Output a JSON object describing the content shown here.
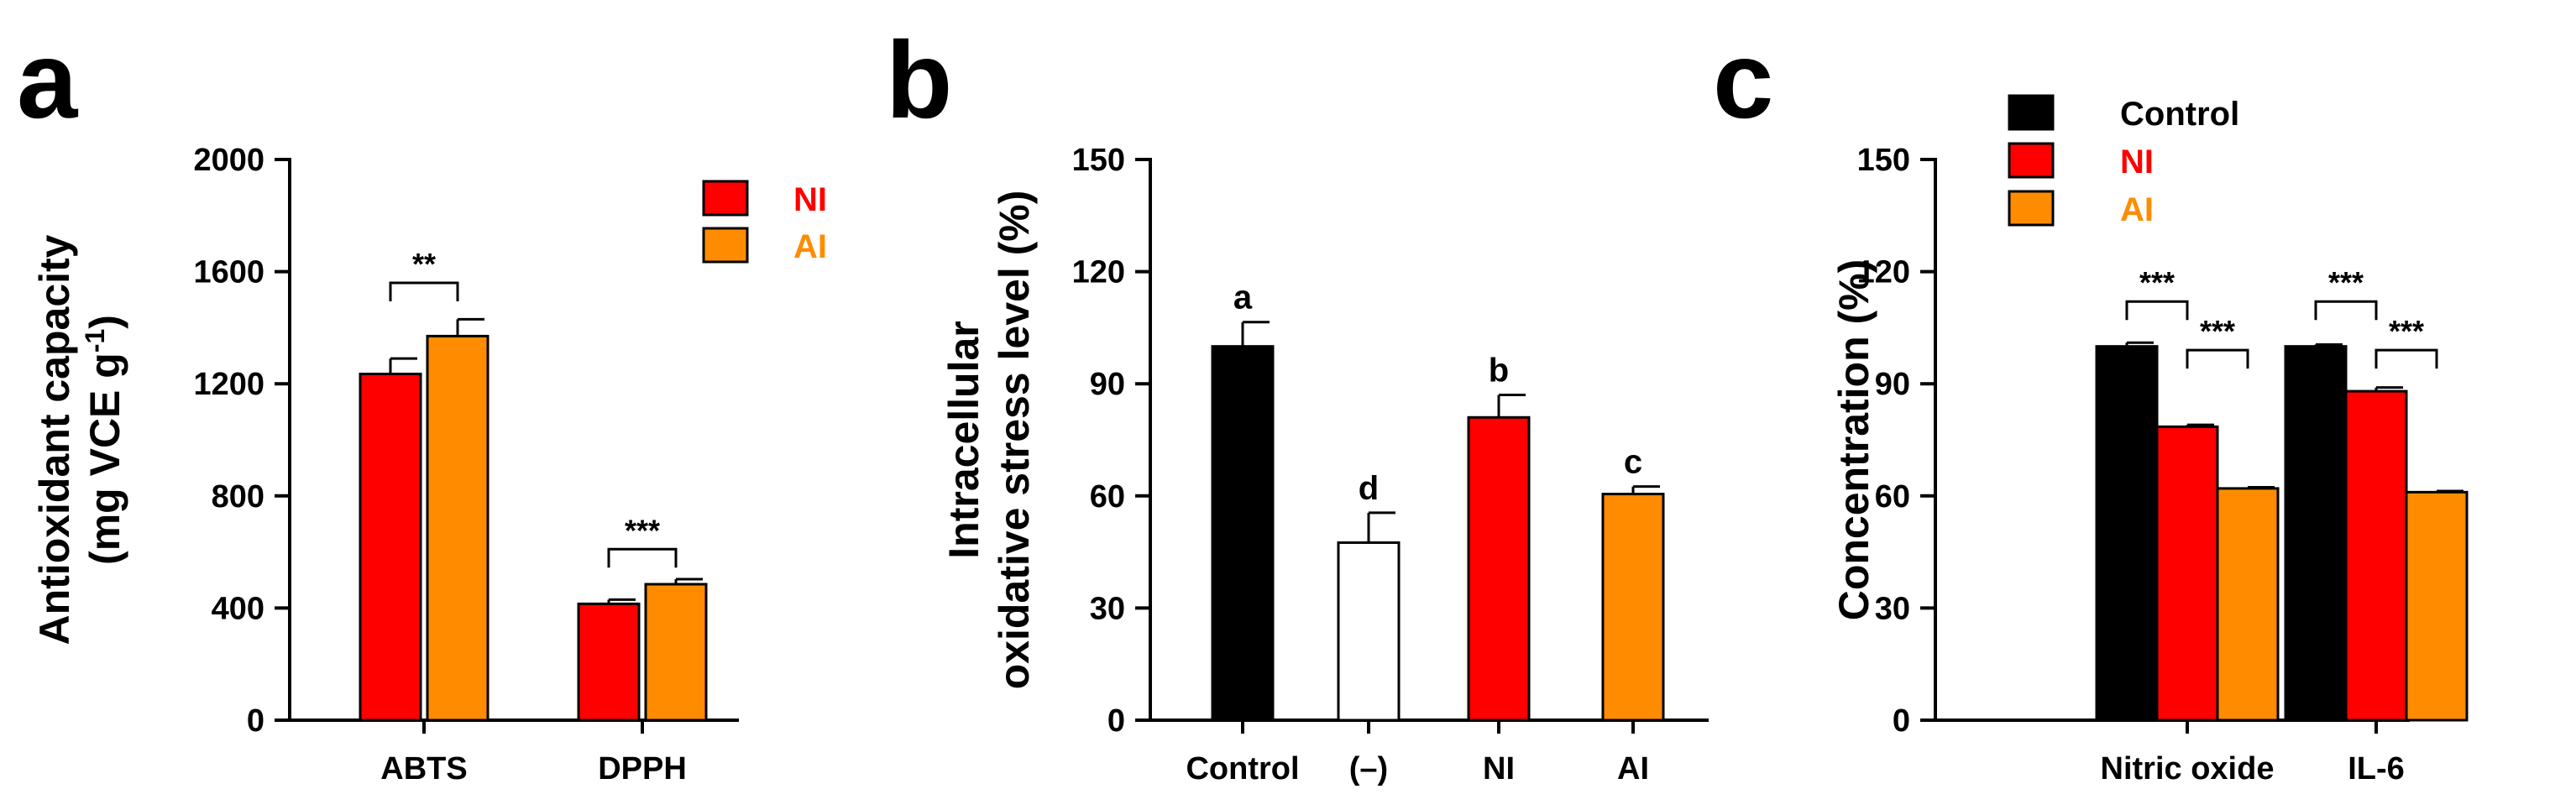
{
  "chart_data": [
    {
      "panel": "a",
      "type": "bar",
      "ylabel_lines": [
        "Antioxidant capacity",
        "(mg VCE g",
        "-1",
        ")"
      ],
      "ylim": [
        0,
        2000
      ],
      "yticks": [
        0,
        400,
        800,
        1200,
        1600,
        2000
      ],
      "categories": [
        "ABTS",
        "DPPH"
      ],
      "legend_position": "top-right",
      "series": [
        {
          "name": "NI",
          "color": "#ff0000",
          "values": [
            1235,
            415
          ],
          "errors": [
            55,
            15
          ]
        },
        {
          "name": "AI",
          "color": "#ff8c00",
          "values": [
            1370,
            485
          ],
          "errors": [
            60,
            18
          ]
        }
      ],
      "significance": [
        {
          "category": 0,
          "between": [
            0,
            1
          ],
          "label": "**",
          "y": 1560
        },
        {
          "category": 1,
          "between": [
            0,
            1
          ],
          "label": "***",
          "y": 610
        }
      ]
    },
    {
      "panel": "b",
      "type": "bar",
      "ylabel_lines": [
        "Intracellular",
        "oxidative stress level (%)"
      ],
      "ylim": [
        0,
        150
      ],
      "yticks": [
        0,
        30,
        60,
        90,
        120,
        150
      ],
      "categories": [
        "Control",
        "(–)",
        "NI",
        "AI"
      ],
      "colors": [
        "#000000",
        "#ffffff",
        "#ff0000",
        "#ff8c00"
      ],
      "values": [
        100,
        47.5,
        81,
        60.5
      ],
      "errors": [
        6.5,
        8,
        6,
        2
      ],
      "letters": [
        "a",
        "d",
        "b",
        "c"
      ]
    },
    {
      "panel": "c",
      "type": "bar",
      "ylabel": "Concentration (%)",
      "ylim": [
        0,
        150
      ],
      "yticks": [
        0,
        30,
        60,
        90,
        120,
        150
      ],
      "categories": [
        "Nitric oxide",
        "IL-6"
      ],
      "legend_position": "top-left",
      "series": [
        {
          "name": "Control",
          "color": "#000000",
          "values": [
            100,
            100
          ],
          "errors": [
            1,
            0.5
          ]
        },
        {
          "name": "NI",
          "color": "#ff0000",
          "values": [
            78.5,
            88
          ],
          "errors": [
            0.5,
            1
          ]
        },
        {
          "name": "AI",
          "color": "#ff8c00",
          "values": [
            62,
            61
          ],
          "errors": [
            0.3,
            0.3
          ]
        }
      ],
      "significance": [
        {
          "category": 0,
          "between": [
            0,
            1
          ],
          "label": "***",
          "y": 112
        },
        {
          "category": 0,
          "between": [
            1,
            2
          ],
          "label": "***",
          "y": 99
        },
        {
          "category": 1,
          "between": [
            0,
            1
          ],
          "label": "***",
          "y": 112
        },
        {
          "category": 1,
          "between": [
            1,
            2
          ],
          "label": "***",
          "y": 99
        }
      ]
    }
  ]
}
